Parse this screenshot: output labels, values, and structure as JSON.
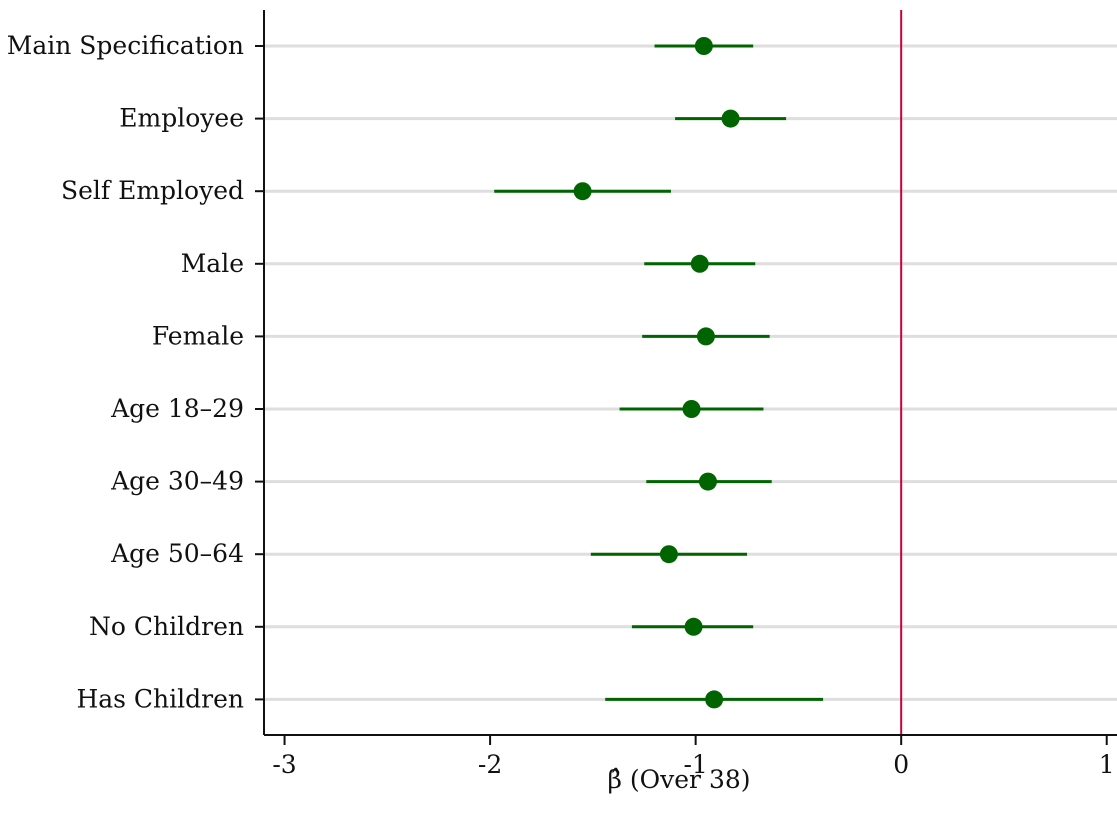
{
  "chart_data": {
    "type": "scatter",
    "subtype": "coefficient-plot",
    "title": "",
    "xlabel": "β̂ (Over 38)",
    "ylabel": "",
    "xlim": [
      -3.1,
      1.05
    ],
    "x_ticks": [
      -3,
      -2,
      -1,
      0,
      1
    ],
    "reference_line": {
      "x": 0,
      "color": "#c8003c"
    },
    "grid": "horizontal",
    "marker_color": "#006400",
    "categories": [
      "Main Specification",
      "Employee",
      "Self Employed",
      "Male",
      "Female",
      "Age  18–29",
      "Age 30–49",
      "Age 50–64",
      "No Children",
      "Has Children"
    ],
    "estimates": [
      -0.96,
      -0.83,
      -1.55,
      -0.98,
      -0.95,
      -1.02,
      -0.94,
      -1.13,
      -1.01,
      -0.91
    ],
    "ci_low": [
      -1.2,
      -1.1,
      -1.98,
      -1.25,
      -1.26,
      -1.37,
      -1.24,
      -1.51,
      -1.31,
      -1.44
    ],
    "ci_high": [
      -0.72,
      -0.56,
      -1.12,
      -0.71,
      -0.64,
      -0.67,
      -0.63,
      -0.75,
      -0.72,
      -0.38
    ]
  }
}
